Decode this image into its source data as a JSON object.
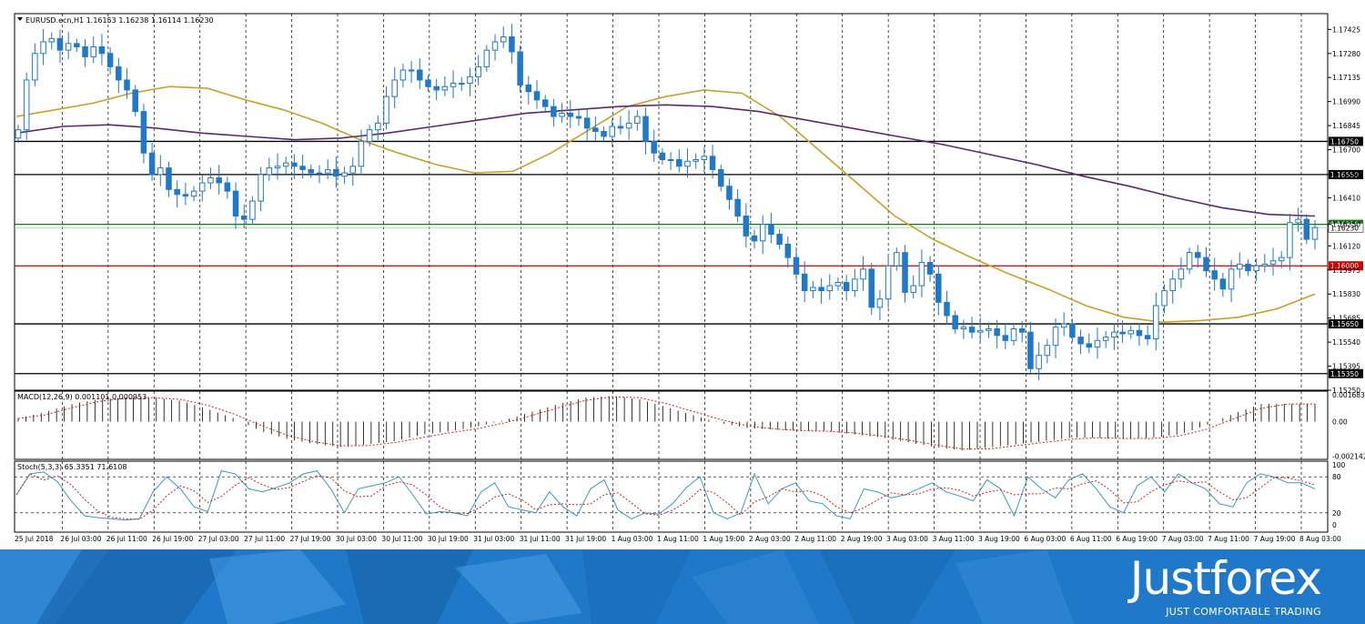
{
  "chart_data": [
    {
      "type": "candlestick",
      "title": "EURUSD.ecn,H1  1.16153 1.16238 1.16114 1.16230",
      "ylim": [
        1.1525,
        1.1752
      ],
      "y_ticks": [
        "1.17425",
        "1.17280",
        "1.17135",
        "1.16990",
        "1.16845",
        "1.16700",
        "1.16550",
        "1.16410",
        "1.16250",
        "1.16120",
        "1.15975",
        "1.15830",
        "1.15685",
        "1.15540",
        "1.15395",
        "1.15250"
      ],
      "x_ticks": [
        "25 Jul 2018",
        "26 Jul 03:00",
        "26 Jul 11:00",
        "26 Jul 19:00",
        "27 Jul 03:00",
        "27 Jul 11:00",
        "27 Jul 19:00",
        "30 Jul 03:00",
        "30 Jul 11:00",
        "30 Jul 19:00",
        "31 Jul 03:00",
        "31 Jul 11:00",
        "31 Jul 19:00",
        "1 Aug 03:00",
        "1 Aug 11:00",
        "1 Aug 19:00",
        "2 Aug 03:00",
        "2 Aug 11:00",
        "2 Aug 19:00",
        "3 Aug 03:00",
        "3 Aug 11:00",
        "3 Aug 19:00",
        "6 Aug 03:00",
        "6 Aug 11:00",
        "6 Aug 19:00",
        "7 Aug 03:00",
        "7 Aug 11:00",
        "7 Aug 19:00",
        "8 Aug 03:00"
      ],
      "levels": [
        {
          "label": "1.16750",
          "value": 1.1675,
          "color": "#000000"
        },
        {
          "label": "1.16550",
          "value": 1.1655,
          "color": "#000000"
        },
        {
          "label": "1.16250",
          "value": 1.1625,
          "color": "#0a7d0a"
        },
        {
          "label": "1.16000",
          "value": 1.16,
          "color": "#d00000"
        },
        {
          "label": "1.15650",
          "value": 1.1565,
          "color": "#000000"
        },
        {
          "label": "1.15350",
          "value": 1.1535,
          "color": "#000000"
        }
      ],
      "current_price": "1.16230",
      "closes": [
        1.1682,
        1.1712,
        1.1728,
        1.1735,
        1.1737,
        1.173,
        1.1734,
        1.1732,
        1.1726,
        1.1732,
        1.1728,
        1.172,
        1.1712,
        1.1706,
        1.1693,
        1.1668,
        1.1655,
        1.1659,
        1.1646,
        1.1643,
        1.1642,
        1.1645,
        1.165,
        1.1653,
        1.165,
        1.1645,
        1.163,
        1.1628,
        1.1639,
        1.1655,
        1.1659,
        1.166,
        1.1662,
        1.166,
        1.1658,
        1.1656,
        1.1656,
        1.1658,
        1.1654,
        1.1656,
        1.166,
        1.1675,
        1.1682,
        1.1686,
        1.1702,
        1.1712,
        1.1718,
        1.1718,
        1.1712,
        1.1708,
        1.1706,
        1.1708,
        1.171,
        1.171,
        1.1714,
        1.172,
        1.173,
        1.1735,
        1.1738,
        1.1729,
        1.1709,
        1.1705,
        1.17,
        1.1696,
        1.169,
        1.1692,
        1.169,
        1.1689,
        1.1683,
        1.1681,
        1.1678,
        1.1684,
        1.1683,
        1.1686,
        1.169,
        1.1675,
        1.1668,
        1.1664,
        1.1664,
        1.166,
        1.1663,
        1.1664,
        1.1666,
        1.1658,
        1.1648,
        1.164,
        1.163,
        1.1618,
        1.1615,
        1.1625,
        1.1619,
        1.1613,
        1.1605,
        1.1595,
        1.1585,
        1.1587,
        1.1585,
        1.1588,
        1.159,
        1.1585,
        1.1592,
        1.1598,
        1.1575,
        1.158,
        1.16,
        1.1608,
        1.1584,
        1.1588,
        1.1602,
        1.1595,
        1.1578,
        1.157,
        1.1562,
        1.1563,
        1.156,
        1.1561,
        1.1562,
        1.1558,
        1.1555,
        1.1562,
        1.156,
        1.1538,
        1.1546,
        1.1552,
        1.1563,
        1.1565,
        1.1557,
        1.1553,
        1.1551,
        1.1555,
        1.1557,
        1.156,
        1.1559,
        1.1561,
        1.1558,
        1.1556,
        1.1576,
        1.1585,
        1.1592,
        1.1598,
        1.1608,
        1.1605,
        1.1597,
        1.1592,
        1.1586,
        1.1598,
        1.1601,
        1.1597,
        1.16,
        1.1601,
        1.1603,
        1.1605,
        1.1626,
        1.1628,
        1.1616,
        1.1623
      ],
      "moving_averages": [
        {
          "color": "#c8a02a",
          "values": [
            1.169,
            1.1694,
            1.1698,
            1.1704,
            1.1708,
            1.1707,
            1.17,
            1.1694,
            1.1686,
            1.1676,
            1.1668,
            1.1661,
            1.1656,
            1.1657,
            1.1668,
            1.1682,
            1.1696,
            1.1702,
            1.1706,
            1.1704,
            1.169,
            1.167,
            1.165,
            1.163,
            1.1616,
            1.1605,
            1.1595,
            1.1586,
            1.1576,
            1.1569,
            1.1566,
            1.1567,
            1.1569,
            1.1574,
            1.1583
          ]
        },
        {
          "color": "#5a2a6a",
          "values": [
            1.168,
            1.1684,
            1.1685,
            1.1683,
            1.168,
            1.1678,
            1.1676,
            1.1677,
            1.168,
            1.1684,
            1.1688,
            1.1692,
            1.1694,
            1.1696,
            1.1697,
            1.1696,
            1.1693,
            1.1688,
            1.1683,
            1.1678,
            1.1673,
            1.1667,
            1.1661,
            1.1654,
            1.1648,
            1.1641,
            1.1635,
            1.1631,
            1.163
          ]
        }
      ]
    },
    {
      "type": "bar",
      "title": "MACD(12,26,9) 0.001101 0.000953",
      "y_ticks": [
        "0.001683",
        "0.00",
        "-0.002142"
      ],
      "ylim": [
        -0.00235,
        0.0019
      ],
      "histogram": [
        0.0002,
        0.0006,
        0.0011,
        0.0014,
        0.0015,
        0.0015,
        0.0013,
        0.0008,
        0.0002,
        -0.0006,
        -0.0011,
        -0.0014,
        -0.0016,
        -0.0014,
        -0.0012,
        -0.0008,
        -0.0006,
        -0.0003,
        0.0001,
        0.0006,
        0.0011,
        0.0015,
        0.0016,
        0.0014,
        0.0009,
        0.0004,
        -0.0001,
        -0.0004,
        -0.0005,
        -0.0006,
        -0.0006,
        -0.0008,
        -0.001,
        -0.0013,
        -0.0016,
        -0.0018,
        -0.0016,
        -0.0014,
        -0.0012,
        -0.001,
        -0.001,
        -0.0011,
        -0.001,
        -0.0008,
        -0.0002,
        0.0005,
        0.0011,
        0.0011,
        0.0011
      ]
    },
    {
      "type": "line",
      "title": "Stoch(5,3,3) 65.3351 71.6108",
      "ylim": [
        0,
        100
      ],
      "y_ticks": [
        "100",
        "80",
        "20",
        "0"
      ],
      "main": [
        50,
        85,
        88,
        72,
        40,
        15,
        12,
        10,
        8,
        10,
        55,
        80,
        60,
        30,
        22,
        90,
        85,
        60,
        55,
        62,
        70,
        85,
        90,
        60,
        20,
        60,
        65,
        70,
        80,
        50,
        18,
        22,
        20,
        15,
        55,
        70,
        30,
        25,
        20,
        55,
        30,
        15,
        60,
        75,
        25,
        10,
        20,
        18,
        35,
        62,
        80,
        20,
        10,
        20,
        85,
        35,
        60,
        70,
        40,
        35,
        15,
        10,
        60,
        55,
        45,
        50,
        60,
        70,
        55,
        48,
        40,
        75,
        60,
        15,
        80,
        60,
        45,
        75,
        85,
        60,
        30,
        20,
        65,
        80,
        55,
        85,
        70,
        60,
        35,
        30,
        70,
        85,
        80,
        70,
        70,
        60
      ]
    }
  ],
  "brand": {
    "logo": "Justforex",
    "tagline": "JUST COMFORTABLE TRADING",
    "banner_color": "#1f78c8"
  },
  "colors": {
    "bull_candle": "#1f78c8",
    "bear_candle": "#1f78c8",
    "grid": "#000000",
    "stoch_main": "#3a9ab8",
    "stoch_signal": "#d02020",
    "macd_signal": "#d02020"
  }
}
